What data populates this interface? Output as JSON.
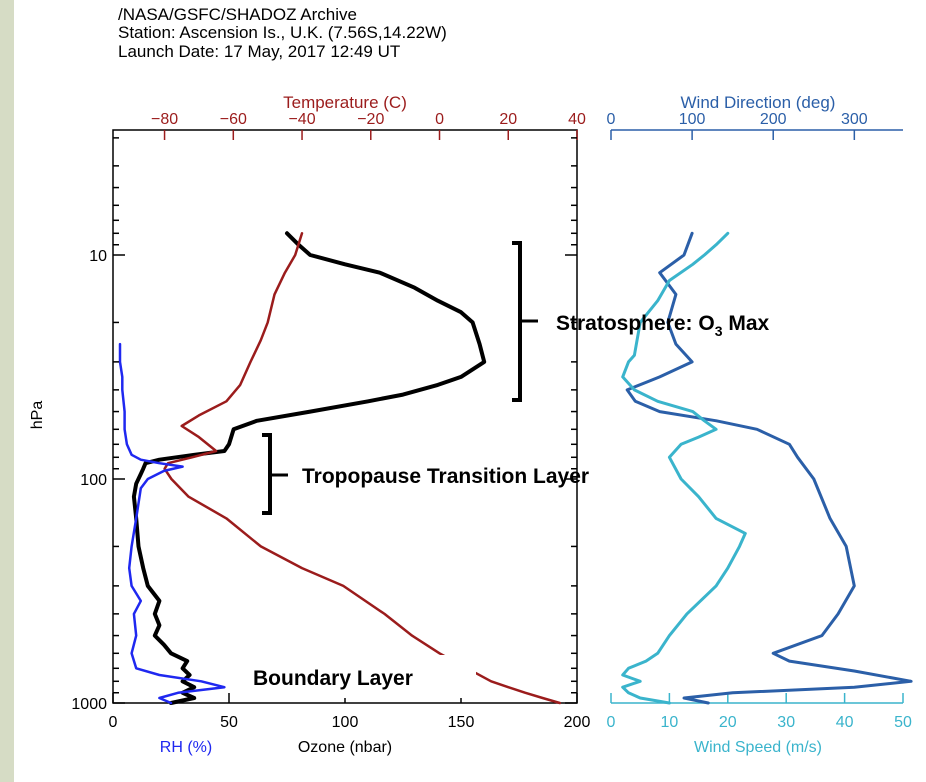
{
  "header": {
    "line1": "/NASA/GSFC/SHADOZ Archive",
    "line2": "Station: Ascension Is., U.K. (7.56S,14.22W)",
    "line3": "Launch Date: 17 May, 2017  12:49 UT"
  },
  "colors": {
    "sidebar": "#d6dcc5",
    "ozone": "#000000",
    "temperature": "#9b1c1c",
    "rh": "#1f28f0",
    "wind_direction": "#2b5fa8",
    "wind_speed": "#3ab4cc"
  },
  "annotations": {
    "stratosphere_prefix": "Stratosphere: O",
    "stratosphere_sub": "3",
    "stratosphere_suffix": " Max",
    "tropopause": "Tropopause Transition Layer",
    "boundary": "Boundary Layer"
  },
  "chart_data": [
    {
      "type": "line",
      "panel": "left",
      "ylabel": "hPa",
      "y_scale": "log",
      "y_reversed": true,
      "ylim": [
        1000,
        3
      ],
      "y_ticks": [
        10,
        100,
        1000
      ],
      "y_tick_labels": [
        "10",
        "100",
        "1000"
      ],
      "x_bottom": {
        "label": "Ozone (nbar)",
        "label2": "RH (%)",
        "lim": [
          0,
          200
        ],
        "ticks": [
          0,
          50,
          100,
          150,
          200
        ],
        "tick_labels": [
          "0",
          "50",
          "100",
          "150",
          "200"
        ]
      },
      "x_top": {
        "label": "Temperature (C)",
        "lim": [
          -95,
          40
        ],
        "ticks": [
          -80,
          -60,
          -40,
          -20,
          0,
          20,
          40
        ],
        "tick_labels": [
          "−80",
          "−60",
          "−40",
          "−20",
          "0",
          "20",
          "40"
        ]
      },
      "series": [
        {
          "name": "Ozone (nbar)",
          "axis": "bottom",
          "points": [
            [
              25,
              1000
            ],
            [
              35,
              950
            ],
            [
              30,
              900
            ],
            [
              35,
              850
            ],
            [
              30,
              800
            ],
            [
              33,
              750
            ],
            [
              30,
              700
            ],
            [
              32,
              650
            ],
            [
              25,
              600
            ],
            [
              22,
              550
            ],
            [
              18,
              500
            ],
            [
              20,
              450
            ],
            [
              18,
              400
            ],
            [
              20,
              350
            ],
            [
              15,
              300
            ],
            [
              13,
              250
            ],
            [
              11,
              200
            ],
            [
              10,
              150
            ],
            [
              9,
              120
            ],
            [
              10,
              105
            ],
            [
              12,
              95
            ],
            [
              13,
              90
            ],
            [
              14,
              85
            ],
            [
              20,
              82
            ],
            [
              35,
              78
            ],
            [
              48,
              75
            ],
            [
              50,
              70
            ],
            [
              52,
              60
            ],
            [
              62,
              55
            ],
            [
              85,
              50
            ],
            [
              110,
              45
            ],
            [
              125,
              42
            ],
            [
              140,
              38
            ],
            [
              150,
              35
            ],
            [
              160,
              30
            ],
            [
              158,
              25
            ],
            [
              155,
              20
            ],
            [
              150,
              18
            ],
            [
              140,
              16
            ],
            [
              130,
              14
            ],
            [
              115,
              12
            ],
            [
              100,
              11
            ],
            [
              85,
              10
            ],
            [
              80,
              9
            ],
            [
              75,
              8
            ]
          ]
        },
        {
          "name": "Temperature (C)",
          "axis": "top",
          "points": [
            [
              35,
              1000
            ],
            [
              30,
              950
            ],
            [
              25,
              900
            ],
            [
              20,
              850
            ],
            [
              15,
              800
            ],
            [
              8,
              700
            ],
            [
              0,
              600
            ],
            [
              -8,
              500
            ],
            [
              -16,
              400
            ],
            [
              -28,
              300
            ],
            [
              -40,
              250
            ],
            [
              -52,
              200
            ],
            [
              -62,
              150
            ],
            [
              -73,
              120
            ],
            [
              -78,
              100
            ],
            [
              -80,
              90
            ],
            [
              -79,
              85
            ],
            [
              -72,
              80
            ],
            [
              -65,
              75
            ],
            [
              -70,
              65
            ],
            [
              -75,
              58
            ],
            [
              -70,
              52
            ],
            [
              -62,
              45
            ],
            [
              -58,
              38
            ],
            [
              -55,
              30
            ],
            [
              -52,
              24
            ],
            [
              -50,
              20
            ],
            [
              -48,
              15
            ],
            [
              -45,
              12
            ],
            [
              -42,
              10
            ],
            [
              -40,
              8
            ]
          ]
        },
        {
          "name": "RH (%)",
          "axis": "bottom",
          "points": [
            [
              25,
              1000
            ],
            [
              20,
              950
            ],
            [
              28,
              900
            ],
            [
              48,
              850
            ],
            [
              38,
              800
            ],
            [
              20,
              750
            ],
            [
              10,
              700
            ],
            [
              8,
              600
            ],
            [
              10,
              500
            ],
            [
              9,
              400
            ],
            [
              12,
              350
            ],
            [
              8,
              300
            ],
            [
              7,
              250
            ],
            [
              8,
              200
            ],
            [
              10,
              150
            ],
            [
              12,
              110
            ],
            [
              15,
              100
            ],
            [
              22,
              92
            ],
            [
              30,
              88
            ],
            [
              20,
              85
            ],
            [
              12,
              82
            ],
            [
              8,
              78
            ],
            [
              6,
              70
            ],
            [
              5,
              60
            ],
            [
              5,
              50
            ],
            [
              4,
              40
            ],
            [
              4,
              35
            ],
            [
              3,
              30
            ],
            [
              3,
              25
            ]
          ]
        }
      ]
    },
    {
      "type": "line",
      "panel": "right",
      "y_scale": "log",
      "y_reversed": true,
      "ylim": [
        1000,
        3
      ],
      "x_bottom": {
        "label": "Wind Speed (m/s)",
        "lim": [
          0,
          50
        ],
        "ticks": [
          0,
          10,
          20,
          30,
          40,
          50
        ],
        "tick_labels": [
          "0",
          "10",
          "20",
          "30",
          "40",
          "50"
        ]
      },
      "x_top": {
        "label": "Wind Direction (deg)",
        "lim": [
          0,
          360
        ],
        "ticks": [
          0,
          100,
          200,
          300
        ],
        "tick_labels": [
          "0",
          "100",
          "200",
          "300"
        ]
      },
      "series": [
        {
          "name": "Wind Direction (deg)",
          "axis": "top",
          "points": [
            [
              120,
              1000
            ],
            [
              90,
              950
            ],
            [
              150,
              900
            ],
            [
              300,
              850
            ],
            [
              370,
              800
            ],
            [
              300,
              720
            ],
            [
              220,
              650
            ],
            [
              200,
              600
            ],
            [
              260,
              500
            ],
            [
              280,
              400
            ],
            [
              300,
              300
            ],
            [
              290,
              200
            ],
            [
              270,
              150
            ],
            [
              250,
              100
            ],
            [
              230,
              80
            ],
            [
              220,
              70
            ],
            [
              180,
              60
            ],
            [
              130,
              55
            ],
            [
              60,
              50
            ],
            [
              30,
              45
            ],
            [
              20,
              40
            ],
            [
              60,
              35
            ],
            [
              100,
              30
            ],
            [
              80,
              25
            ],
            [
              70,
              20
            ],
            [
              80,
              15
            ],
            [
              60,
              12
            ],
            [
              90,
              10
            ],
            [
              100,
              8
            ]
          ]
        },
        {
          "name": "Wind Speed (m/s)",
          "axis": "bottom",
          "points": [
            [
              10,
              1000
            ],
            [
              5,
              950
            ],
            [
              3,
              900
            ],
            [
              2,
              850
            ],
            [
              5,
              800
            ],
            [
              2,
              750
            ],
            [
              3,
              700
            ],
            [
              6,
              650
            ],
            [
              8,
              600
            ],
            [
              10,
              500
            ],
            [
              13,
              400
            ],
            [
              18,
              300
            ],
            [
              20,
              250
            ],
            [
              22,
              200
            ],
            [
              23,
              175
            ],
            [
              18,
              150
            ],
            [
              15,
              120
            ],
            [
              12,
              100
            ],
            [
              10,
              80
            ],
            [
              12,
              70
            ],
            [
              15,
              65
            ],
            [
              18,
              60
            ],
            [
              16,
              55
            ],
            [
              14,
              50
            ],
            [
              8,
              45
            ],
            [
              4,
              40
            ],
            [
              2,
              35
            ],
            [
              3,
              30
            ],
            [
              4,
              28
            ],
            [
              5,
              20
            ],
            [
              8,
              16
            ],
            [
              10,
              13
            ],
            [
              14,
              11
            ],
            [
              16,
              10
            ],
            [
              18,
              9
            ],
            [
              20,
              8
            ]
          ]
        }
      ]
    }
  ]
}
